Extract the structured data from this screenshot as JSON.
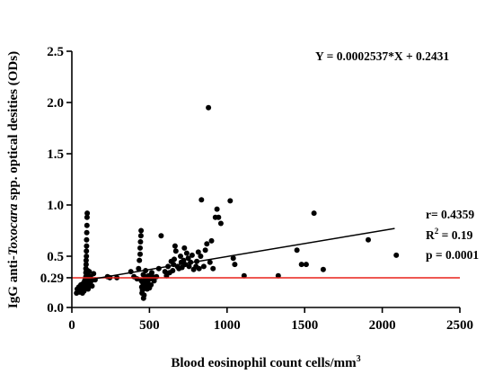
{
  "chart_data": {
    "type": "scatter",
    "xlabel": "Blood eosinophil count cells/mm",
    "xlabel_sup": "3",
    "ylabel_parts": [
      "IgG anti-",
      "Toxocara",
      " spp. optical desities (ODs)"
    ],
    "xlim": [
      0,
      2500
    ],
    "ylim": [
      0,
      2.5
    ],
    "x_ticks": [
      0,
      500,
      1000,
      1500,
      2000,
      2500
    ],
    "x_tick_labels": [
      "0",
      "500",
      "1000",
      "1500",
      "2000",
      "2500"
    ],
    "y_ticks": [
      0.0,
      0.5,
      1.0,
      1.5,
      2.0,
      2.5
    ],
    "y_tick_labels": [
      "0.0",
      "0.5",
      "1.0",
      "1.5",
      "2.0",
      "2.5"
    ],
    "extra_y_tick": {
      "value": 0.29,
      "label": "0.29"
    },
    "grid": false,
    "equation": "Y = 0.0002537*X + 0.2431",
    "stats": {
      "r": "r= 0.4359",
      "r2_prefix": "R",
      "r2_sup": "2",
      "r2_suffix": " = 0.19",
      "p": "p = 0.0001"
    },
    "regression": {
      "slope": 0.0002537,
      "intercept": 0.2431,
      "x_start": 80,
      "x_end": 2080,
      "color": "#000000"
    },
    "cutoff": {
      "y": 0.29,
      "x_start": 0,
      "x_end": 2500,
      "color": "#e8201a"
    },
    "point_color": "#000000",
    "points": [
      [
        30,
        0.14
      ],
      [
        35,
        0.18
      ],
      [
        40,
        0.16
      ],
      [
        45,
        0.2
      ],
      [
        50,
        0.15
      ],
      [
        55,
        0.19
      ],
      [
        58,
        0.22
      ],
      [
        60,
        0.17
      ],
      [
        65,
        0.21
      ],
      [
        68,
        0.14
      ],
      [
        70,
        0.23
      ],
      [
        72,
        0.18
      ],
      [
        75,
        0.2
      ],
      [
        78,
        0.16
      ],
      [
        80,
        0.24
      ],
      [
        82,
        0.26
      ],
      [
        84,
        0.19
      ],
      [
        86,
        0.22
      ],
      [
        88,
        0.28
      ],
      [
        90,
        0.3
      ],
      [
        90,
        0.34
      ],
      [
        90,
        0.38
      ],
      [
        92,
        0.42
      ],
      [
        92,
        0.46
      ],
      [
        94,
        0.5
      ],
      [
        94,
        0.55
      ],
      [
        95,
        0.6
      ],
      [
        95,
        0.66
      ],
      [
        96,
        0.73
      ],
      [
        97,
        0.8
      ],
      [
        98,
        0.88
      ],
      [
        99,
        0.92
      ],
      [
        100,
        0.2
      ],
      [
        100,
        0.27
      ],
      [
        100,
        0.32
      ],
      [
        102,
        0.36
      ],
      [
        104,
        0.25
      ],
      [
        105,
        0.18
      ],
      [
        108,
        0.3
      ],
      [
        110,
        0.22
      ],
      [
        112,
        0.35
      ],
      [
        115,
        0.28
      ],
      [
        118,
        0.24
      ],
      [
        120,
        0.3
      ],
      [
        125,
        0.26
      ],
      [
        130,
        0.21
      ],
      [
        140,
        0.33
      ],
      [
        150,
        0.27
      ],
      [
        230,
        0.3
      ],
      [
        245,
        0.29
      ],
      [
        290,
        0.29
      ],
      [
        380,
        0.35
      ],
      [
        400,
        0.3
      ],
      [
        420,
        0.28
      ],
      [
        430,
        0.38
      ],
      [
        435,
        0.46
      ],
      [
        440,
        0.52
      ],
      [
        440,
        0.58
      ],
      [
        442,
        0.64
      ],
      [
        445,
        0.7
      ],
      [
        446,
        0.75
      ],
      [
        448,
        0.26
      ],
      [
        450,
        0.2
      ],
      [
        452,
        0.14
      ],
      [
        455,
        0.17
      ],
      [
        458,
        0.24
      ],
      [
        460,
        0.32
      ],
      [
        462,
        0.09
      ],
      [
        465,
        0.12
      ],
      [
        468,
        0.2
      ],
      [
        470,
        0.25
      ],
      [
        472,
        0.29
      ],
      [
        475,
        0.36
      ],
      [
        478,
        0.22
      ],
      [
        480,
        0.3
      ],
      [
        482,
        0.27
      ],
      [
        485,
        0.18
      ],
      [
        488,
        0.23
      ],
      [
        490,
        0.26
      ],
      [
        495,
        0.31
      ],
      [
        500,
        0.19
      ],
      [
        505,
        0.28
      ],
      [
        510,
        0.22
      ],
      [
        515,
        0.34
      ],
      [
        520,
        0.3
      ],
      [
        530,
        0.26
      ],
      [
        545,
        0.3
      ],
      [
        560,
        0.38
      ],
      [
        575,
        0.7
      ],
      [
        600,
        0.35
      ],
      [
        610,
        0.31
      ],
      [
        620,
        0.4
      ],
      [
        630,
        0.34
      ],
      [
        640,
        0.45
      ],
      [
        650,
        0.36
      ],
      [
        655,
        0.42
      ],
      [
        660,
        0.47
      ],
      [
        665,
        0.6
      ],
      [
        670,
        0.55
      ],
      [
        680,
        0.4
      ],
      [
        690,
        0.38
      ],
      [
        700,
        0.5
      ],
      [
        705,
        0.44
      ],
      [
        710,
        0.39
      ],
      [
        720,
        0.46
      ],
      [
        725,
        0.58
      ],
      [
        730,
        0.42
      ],
      [
        740,
        0.53
      ],
      [
        750,
        0.48
      ],
      [
        755,
        0.4
      ],
      [
        765,
        0.44
      ],
      [
        775,
        0.51
      ],
      [
        785,
        0.37
      ],
      [
        800,
        0.4
      ],
      [
        805,
        0.45
      ],
      [
        815,
        0.54
      ],
      [
        820,
        0.38
      ],
      [
        830,
        0.5
      ],
      [
        835,
        1.05
      ],
      [
        850,
        0.4
      ],
      [
        860,
        0.56
      ],
      [
        870,
        0.62
      ],
      [
        880,
        1.95
      ],
      [
        890,
        0.44
      ],
      [
        900,
        0.65
      ],
      [
        910,
        0.38
      ],
      [
        925,
        0.88
      ],
      [
        935,
        0.96
      ],
      [
        945,
        0.88
      ],
      [
        960,
        0.82
      ],
      [
        1020,
        1.04
      ],
      [
        1040,
        0.48
      ],
      [
        1050,
        0.42
      ],
      [
        1110,
        0.31
      ],
      [
        1330,
        0.31
      ],
      [
        1450,
        0.56
      ],
      [
        1480,
        0.42
      ],
      [
        1510,
        0.42
      ],
      [
        1560,
        0.92
      ],
      [
        1620,
        0.37
      ],
      [
        1910,
        0.66
      ],
      [
        2090,
        0.51
      ]
    ]
  }
}
